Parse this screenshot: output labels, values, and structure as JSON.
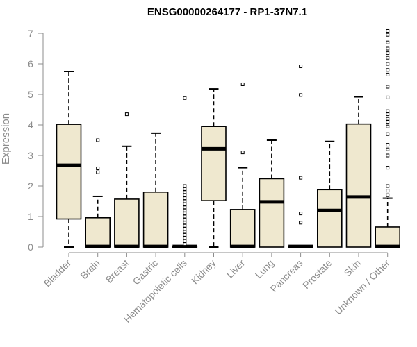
{
  "chart_data": {
    "type": "boxplot",
    "title": "ENSG00000264177 - RP1-37N7.1",
    "xlabel": "",
    "ylabel": "Expression",
    "ylim": [
      0,
      7
    ],
    "yticks": [
      0,
      1,
      2,
      3,
      4,
      5,
      6,
      7
    ],
    "grid": false,
    "legend": "none",
    "colors": {
      "box_fill": "#efe8cf",
      "stroke": "#000000",
      "axis": "#8c8c8c"
    },
    "categories": [
      "Bladder",
      "Brain",
      "Breast",
      "Gastric",
      "Hematopoietic cells",
      "Kidney",
      "Liver",
      "Lung",
      "Pancreas",
      "Prostate",
      "Skin",
      "Unknown / Other"
    ],
    "boxes": [
      {
        "category": "Bladder",
        "whisker_low": 0,
        "q1": 0.92,
        "median": 2.68,
        "q3": 4.02,
        "whisker_high": 5.75,
        "outliers": []
      },
      {
        "category": "Brain",
        "whisker_low": 0,
        "q1": 0,
        "median": 0.02,
        "q3": 0.96,
        "whisker_high": 1.66,
        "outliers": [
          2.45,
          2.58,
          3.5
        ]
      },
      {
        "category": "Breast",
        "whisker_low": 0,
        "q1": 0,
        "median": 0.02,
        "q3": 1.57,
        "whisker_high": 3.3,
        "outliers": [
          4.35
        ]
      },
      {
        "category": "Gastric",
        "whisker_low": 0,
        "q1": 0,
        "median": 0.02,
        "q3": 1.8,
        "whisker_high": 3.73,
        "outliers": []
      },
      {
        "category": "Hematopoietic cells",
        "whisker_low": 0,
        "q1": 0,
        "median": 0.02,
        "q3": 0.02,
        "whisker_high": 0.02,
        "outliers": [
          0.1,
          0.2,
          0.3,
          0.4,
          0.5,
          0.6,
          0.7,
          0.8,
          0.9,
          1.0,
          1.1,
          1.2,
          1.3,
          1.4,
          1.5,
          1.6,
          1.7,
          1.8,
          1.9,
          2.0,
          4.88
        ]
      },
      {
        "category": "Kidney",
        "whisker_low": 0,
        "q1": 1.52,
        "median": 3.22,
        "q3": 3.95,
        "whisker_high": 5.18,
        "outliers": []
      },
      {
        "category": "Liver",
        "whisker_low": 0,
        "q1": 0,
        "median": 0.02,
        "q3": 1.23,
        "whisker_high": 2.6,
        "outliers": [
          3.1,
          5.33
        ]
      },
      {
        "category": "Lung",
        "whisker_low": 0,
        "q1": 0,
        "median": 1.48,
        "q3": 2.24,
        "whisker_high": 3.5,
        "outliers": []
      },
      {
        "category": "Pancreas",
        "whisker_low": 0,
        "q1": 0,
        "median": 0.02,
        "q3": 0.02,
        "whisker_high": 0.02,
        "outliers": [
          0.8,
          1.1,
          2.27,
          4.98,
          5.92
        ]
      },
      {
        "category": "Prostate",
        "whisker_low": 0,
        "q1": 0,
        "median": 1.2,
        "q3": 1.88,
        "whisker_high": 3.46,
        "outliers": []
      },
      {
        "category": "Skin",
        "whisker_low": 0,
        "q1": 0,
        "median": 1.64,
        "q3": 4.03,
        "whisker_high": 4.92,
        "outliers": []
      },
      {
        "category": "Unknown / Other",
        "whisker_low": 0,
        "q1": 0,
        "median": 0.02,
        "q3": 0.66,
        "whisker_high": 1.6,
        "outliers": [
          1.7,
          1.85,
          2.0,
          2.6,
          3.0,
          3.2,
          3.35,
          3.7,
          3.95,
          4.1,
          4.2,
          4.35,
          4.45,
          4.9,
          5.25,
          5.65,
          5.8,
          6.0,
          6.2,
          6.35,
          6.5,
          6.7,
          6.95,
          7.08
        ]
      }
    ]
  }
}
